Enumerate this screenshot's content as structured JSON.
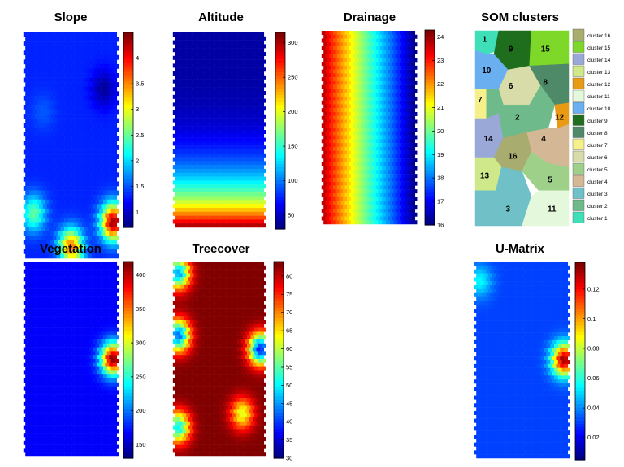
{
  "chart_data": [
    {
      "type": "heatmap",
      "title": "Slope",
      "colorbar_ticks": [
        1,
        1.5,
        2,
        2.5,
        3,
        3.5,
        4
      ],
      "clim": [
        0.7,
        4.5
      ],
      "colormap": "jet",
      "blobs": [
        {
          "x": 0.2,
          "y": 0.35,
          "value": 1.5
        },
        {
          "x": 0.95,
          "y": 0.84,
          "value": 4.4
        },
        {
          "x": 0.5,
          "y": 0.95,
          "value": 3.6
        },
        {
          "x": 0.1,
          "y": 0.8,
          "value": 2.5
        },
        {
          "x": 0.85,
          "y": 0.25,
          "value": 0.8
        }
      ],
      "base_value": 1.3
    },
    {
      "type": "heatmap",
      "title": "Altitude",
      "colorbar_ticks": [
        50,
        100,
        150,
        200,
        250,
        300
      ],
      "clim": [
        30,
        315
      ],
      "colormap": "jet",
      "gradient": "vertical",
      "base_value": 40,
      "bottom_value": 310
    },
    {
      "type": "heatmap",
      "title": "Drainage",
      "colorbar_ticks": [
        16,
        17,
        18,
        19,
        20,
        21,
        22,
        23,
        24
      ],
      "clim": [
        16,
        24.3
      ],
      "colormap": "jet",
      "gradient": "horizontal",
      "left_value": 24,
      "right_value": 16
    },
    {
      "type": "heatmap",
      "title": "Vegetation",
      "colorbar_ticks": [
        150,
        200,
        250,
        300,
        350,
        400
      ],
      "clim": [
        130,
        420
      ],
      "colormap": "jet",
      "base_value": 165,
      "blobs": [
        {
          "x": 0.95,
          "y": 0.5,
          "value": 420
        }
      ]
    },
    {
      "type": "heatmap",
      "title": "Treecover",
      "colorbar_ticks": [
        30,
        35,
        40,
        45,
        50,
        55,
        60,
        65,
        70,
        75,
        80
      ],
      "clim": [
        30,
        84
      ],
      "colormap": "jet",
      "base_value": 84,
      "blobs": [
        {
          "x": 0.05,
          "y": 0.38,
          "value": 42
        },
        {
          "x": 0.95,
          "y": 0.45,
          "value": 38
        },
        {
          "x": 0.05,
          "y": 0.06,
          "value": 45
        },
        {
          "x": 0.75,
          "y": 0.78,
          "value": 62
        },
        {
          "x": 0.05,
          "y": 0.85,
          "value": 50
        }
      ]
    },
    {
      "type": "heatmap",
      "title": "U-Matrix",
      "colorbar_ticks": [
        0.02,
        0.04,
        0.06,
        0.08,
        0.1,
        0.12
      ],
      "clim": [
        0.005,
        0.138
      ],
      "colormap": "jet",
      "base_value": 0.03,
      "blobs": [
        {
          "x": 0.95,
          "y": 0.5,
          "value": 0.135
        },
        {
          "x": 0.05,
          "y": 0.1,
          "value": 0.055
        }
      ]
    },
    {
      "type": "table",
      "title": "SOM clusters",
      "clusters": [
        {
          "id": "1",
          "color": "#3fe0b8"
        },
        {
          "id": "2",
          "color": "#6fba8a"
        },
        {
          "id": "3",
          "color": "#70c0c8"
        },
        {
          "id": "4",
          "color": "#d4b896"
        },
        {
          "id": "5",
          "color": "#9fd08a"
        },
        {
          "id": "6",
          "color": "#d8dca8"
        },
        {
          "id": "7",
          "color": "#f5f08a"
        },
        {
          "id": "8",
          "color": "#4e8a68"
        },
        {
          "id": "9",
          "color": "#1e6e1e"
        },
        {
          "id": "10",
          "color": "#6ab0f0"
        },
        {
          "id": "11",
          "color": "#e4f8dc"
        },
        {
          "id": "12",
          "color": "#e89a14"
        },
        {
          "id": "13",
          "color": "#cfe88a"
        },
        {
          "id": "14",
          "color": "#9aa8d8"
        },
        {
          "id": "15",
          "color": "#7ed82a"
        },
        {
          "id": "16",
          "color": "#a8ac6e"
        }
      ],
      "legend_labels": [
        "cluster 16",
        "cluster 15",
        "cluster 14",
        "cluster 13",
        "cluster 12",
        "cluster 11",
        "cluster 10",
        "cluster 9",
        "cluster 8",
        "cluster 7",
        "cluster 6",
        "cluster 5",
        "cluster 4",
        "cluster 3",
        "cluster 2",
        "cluster 1"
      ]
    }
  ]
}
